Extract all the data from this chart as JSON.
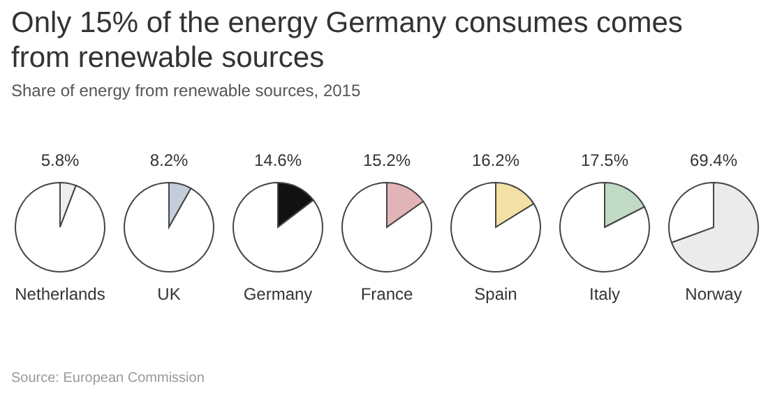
{
  "chart_data": [
    {
      "type": "other",
      "title": "Only 15% of the energy Germany consumes comes from renewable sources",
      "subtitle": "Share of energy from renewable sources, 2015",
      "annotations": [
        "Source: European Commission"
      ]
    },
    {
      "type": "pie",
      "title": "Netherlands",
      "categories": [
        null,
        null
      ],
      "values": [
        5.8,
        94.2
      ],
      "colors": [
        "#eeeeee",
        "#ffffff"
      ],
      "value_labels": [
        "5.8%",
        null
      ]
    },
    {
      "type": "pie",
      "title": "UK",
      "categories": [
        null,
        null
      ],
      "values": [
        8.2,
        91.8
      ],
      "colors": [
        "#c3cedb",
        "#ffffff"
      ],
      "value_labels": [
        "8.2%",
        null
      ]
    },
    {
      "type": "pie",
      "title": "Germany",
      "categories": [
        null,
        null
      ],
      "values": [
        14.6,
        85.4
      ],
      "colors": [
        "#111111",
        "#ffffff"
      ],
      "value_labels": [
        "14.6%",
        null
      ]
    },
    {
      "type": "pie",
      "title": "France",
      "categories": [
        null,
        null
      ],
      "values": [
        15.2,
        84.8
      ],
      "colors": [
        "#e2b4b7",
        "#ffffff"
      ],
      "value_labels": [
        "15.2%",
        null
      ]
    },
    {
      "type": "pie",
      "title": "Spain",
      "categories": [
        null,
        null
      ],
      "values": [
        16.2,
        83.8
      ],
      "colors": [
        "#f4e1a6",
        "#ffffff"
      ],
      "value_labels": [
        "16.2%",
        null
      ]
    },
    {
      "type": "pie",
      "title": "Italy",
      "categories": [
        null,
        null
      ],
      "values": [
        17.5,
        82.5
      ],
      "colors": [
        "#c0dac6",
        "#ffffff"
      ],
      "value_labels": [
        "17.5%",
        null
      ]
    },
    {
      "type": "pie",
      "title": "Norway",
      "categories": [
        null,
        null
      ],
      "values": [
        69.4,
        30.6
      ],
      "colors": [
        "#ebebeb",
        "#ffffff"
      ],
      "value_labels": [
        "69.4%",
        null
      ]
    }
  ]
}
